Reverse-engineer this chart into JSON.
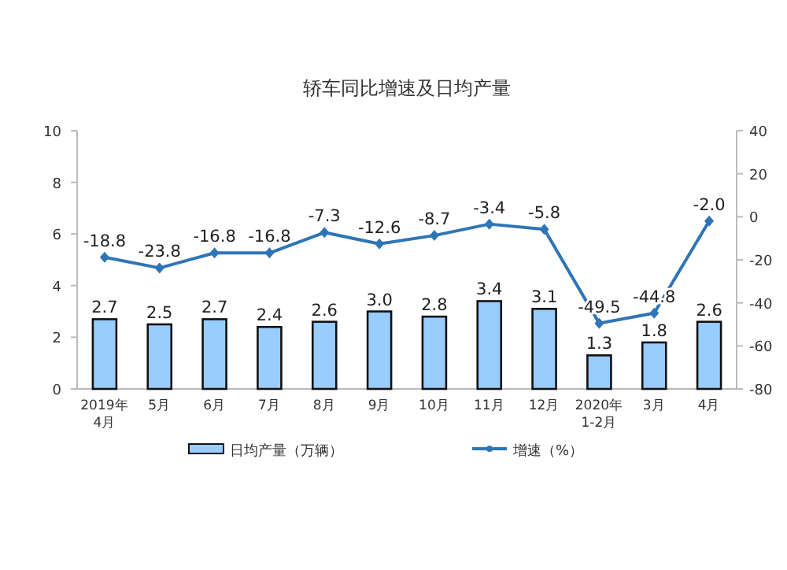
{
  "chart_data": {
    "type": "bar",
    "title": "轿车同比增速及日均产量",
    "categories": [
      "2019年\n4月",
      "5月",
      "6月",
      "7月",
      "8月",
      "9月",
      "10月",
      "11月",
      "12月",
      "2020年\n1-2月",
      "3月",
      "4月"
    ],
    "series": [
      {
        "name": "日均产量（万辆）",
        "color": "#99ccff",
        "values": [
          2.7,
          2.5,
          2.7,
          2.4,
          2.6,
          3.0,
          2.8,
          3.4,
          3.1,
          1.3,
          1.8,
          2.6
        ],
        "value_labels": [
          "2.7",
          "2.5",
          "2.7",
          "2.4",
          "2.6",
          "3.0",
          "2.8",
          "3.4",
          "3.1",
          "1.3",
          "1.8",
          "2.6"
        ]
      },
      {
        "name": "增速（%）",
        "type": "line",
        "axis": "y2",
        "color": "#2e75b6",
        "values": [
          -18.8,
          -23.8,
          -16.8,
          -16.8,
          -7.3,
          -12.6,
          -8.7,
          -3.4,
          -5.8,
          -49.5,
          -44.8,
          -2.0
        ],
        "value_labels": [
          "-18.8",
          "-23.8",
          "-16.8",
          "-16.8",
          "-7.3",
          "-12.6",
          "-8.7",
          "-3.4",
          "-5.8",
          "-49.5",
          "-44.8",
          "-2.0"
        ]
      }
    ],
    "ylim": [
      0,
      10
    ],
    "yticks": [
      0,
      2,
      4,
      6,
      8,
      10
    ],
    "y2lim": [
      -80,
      40
    ],
    "y2ticks": [
      -80,
      -60,
      -40,
      -20,
      0,
      20,
      40
    ],
    "legend": "bottom",
    "marker": "diamond"
  }
}
